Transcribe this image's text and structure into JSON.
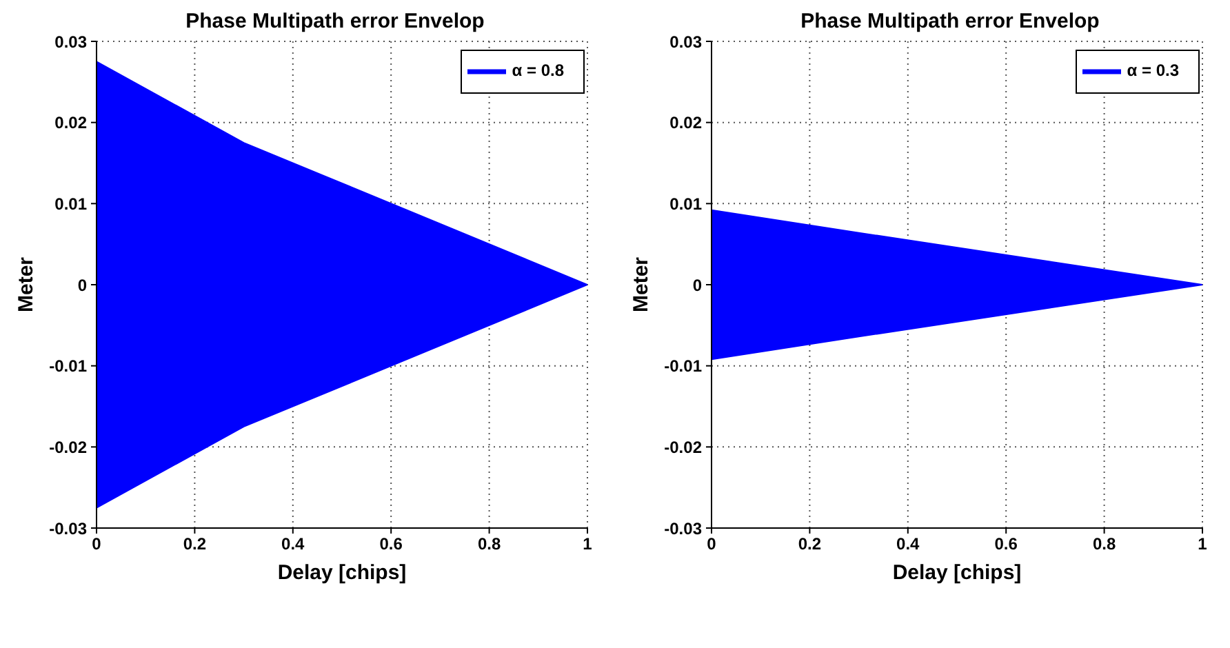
{
  "chart_data": [
    {
      "type": "area",
      "title": "Phase Multipath error Envelop",
      "xlabel": "Delay [chips]",
      "ylabel": "Meter",
      "x": [
        0,
        0.3,
        1
      ],
      "xlim": [
        0,
        1
      ],
      "xticks": [
        0,
        0.2,
        0.4,
        0.6,
        0.8,
        1
      ],
      "ylim": [
        -0.03,
        0.03
      ],
      "yticks": [
        -0.03,
        -0.02,
        -0.01,
        0,
        0.01,
        0.02,
        0.03
      ],
      "grid": true,
      "legend": "top right",
      "series": [
        {
          "name": "α = 0.8",
          "color": "#0000ff",
          "values": [
            0.0275,
            0.0175,
            0
          ]
        },
        {
          "color": "#0000fe",
          "values": [
            -0.0275,
            -0.0175,
            0
          ]
        }
      ]
    },
    {
      "type": "area",
      "title": "Phase Multipath error Envelop",
      "xlabel": "Delay [chips]",
      "ylabel": "Meter",
      "x": [
        0,
        0.3,
        1
      ],
      "xlim": [
        0,
        1
      ],
      "xticks": [
        0,
        0.2,
        0.4,
        0.6,
        0.8,
        1
      ],
      "ylim": [
        -0.03,
        0.03
      ],
      "yticks": [
        -0.03,
        -0.02,
        -0.01,
        0,
        0.01,
        0.02,
        0.03
      ],
      "grid": true,
      "legend": "top right",
      "series": [
        {
          "name": "α = 0.3",
          "color": "#0000ff",
          "values": [
            0.0092,
            0.0064,
            0
          ]
        },
        {
          "color": "#0000fe",
          "values": [
            -0.0092,
            -0.0064,
            0
          ]
        }
      ]
    }
  ]
}
